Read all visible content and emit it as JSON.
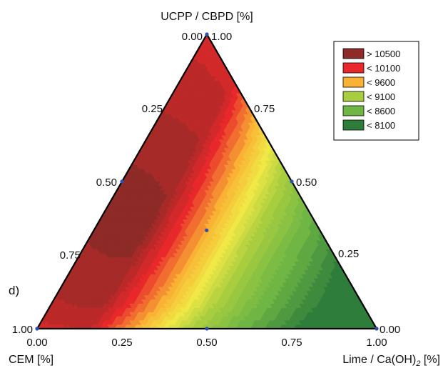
{
  "chart_data": {
    "type": "heatmap",
    "subtype": "ternary-contour",
    "panel_label": "d)",
    "axes": {
      "top": "UCPP / CBPD [%]",
      "left": "CEM [%]",
      "right_prefix": "Lime / Ca(OH)",
      "right_subscript": "2",
      "right_suffix": " [%]"
    },
    "bottom_ticks": [
      "0.00",
      "0.25",
      "0.50",
      "0.75",
      "1.00"
    ],
    "left_ticks": [
      "1.00",
      "0.75",
      "0.50",
      "0.25",
      "0.00"
    ],
    "right_ticks": [
      "0.00",
      "0.25",
      "0.50",
      "0.75",
      "1.00"
    ],
    "legend": {
      "placement": "top-right",
      "levels": [
        {
          "label": "> 10500",
          "color": "#8e2a27"
        },
        {
          "label": "< 10100",
          "color": "#e8282b"
        },
        {
          "label": "< 9600",
          "color": "#f9b234"
        },
        {
          "label": "< 9100",
          "color": "#a8cd3f"
        },
        {
          "label": "< 8600",
          "color": "#6fb645"
        },
        {
          "label": "< 8100",
          "color": "#2e7d3a"
        }
      ]
    },
    "design_points": [
      {
        "cem": 1.0,
        "ucpp": 0.0,
        "lime": 0.0
      },
      {
        "cem": 0.0,
        "ucpp": 1.0,
        "lime": 0.0
      },
      {
        "cem": 0.0,
        "ucpp": 0.0,
        "lime": 1.0
      },
      {
        "cem": 0.5,
        "ucpp": 0.5,
        "lime": 0.0
      },
      {
        "cem": 0.0,
        "ucpp": 0.5,
        "lime": 0.5
      },
      {
        "cem": 0.5,
        "ucpp": 0.0,
        "lime": 0.5
      },
      {
        "cem": 0.333,
        "ucpp": 0.333,
        "lime": 0.333
      }
    ],
    "maximum_region": {
      "cem": 0.55,
      "ucpp": 0.4,
      "lime": 0.05
    }
  }
}
